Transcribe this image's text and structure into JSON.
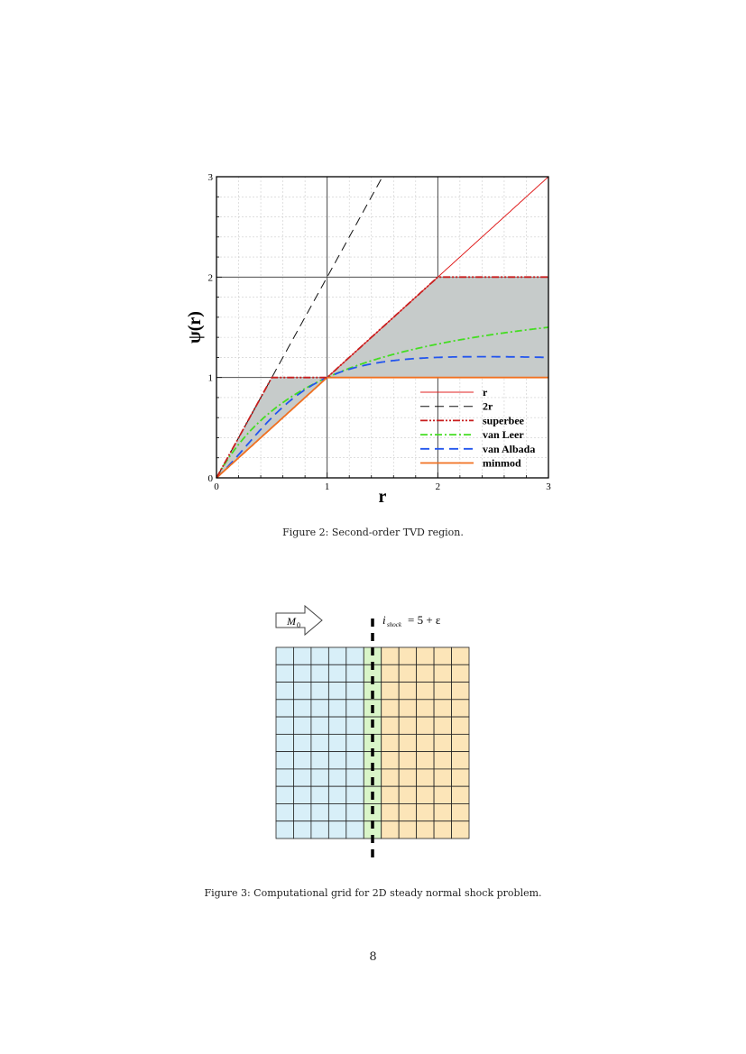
{
  "figure2": {
    "caption": "Figure 2: Second-order TVD region.",
    "chart_data": {
      "type": "line",
      "title": "",
      "xlabel": "r",
      "ylabel": "ψ(r)",
      "xlim": [
        0,
        3
      ],
      "ylim": [
        0,
        3
      ],
      "xticks": [
        "0",
        "1",
        "2",
        "3"
      ],
      "yticks": [
        "0",
        "1",
        "2",
        "3"
      ],
      "grid": true,
      "legend_position": "bottom-right",
      "shaded_region": "between superbee and minmod",
      "series": [
        {
          "name": "r",
          "color": "#e02020",
          "style": "solid",
          "formula": "r"
        },
        {
          "name": "2r",
          "color": "#111111",
          "style": "dashed",
          "formula": "2r"
        },
        {
          "name": "superbee",
          "color": "#c81e1e",
          "style": "dash-dot-dot",
          "formula": "max(0,min(2r,1),min(r,2))"
        },
        {
          "name": "van Leer",
          "color": "#44dd22",
          "style": "dash-dot",
          "formula": "(r+|r|)/(1+r)"
        },
        {
          "name": "van Albada",
          "color": "#2255ee",
          "style": "dashed",
          "formula": "(r^2+r)/(1+r^2)"
        },
        {
          "name": "minmod",
          "color": "#f07020",
          "style": "solid",
          "formula": "max(0,min(r,1))"
        }
      ]
    }
  },
  "figure3": {
    "caption": "Figure 3: Computational grid for 2D steady normal shock problem.",
    "inflow_label": "M",
    "inflow_sub": "0",
    "shock_label_i": "i",
    "shock_label_sub": "shock",
    "shock_label_eq": "= 5 + ε",
    "columns": 11,
    "rows": 11,
    "shock_column": 6,
    "colors": {
      "upstream": "#d8eff8",
      "shock": "#d9f5c8",
      "downstream": "#fce5b8"
    }
  },
  "page_number": "8"
}
